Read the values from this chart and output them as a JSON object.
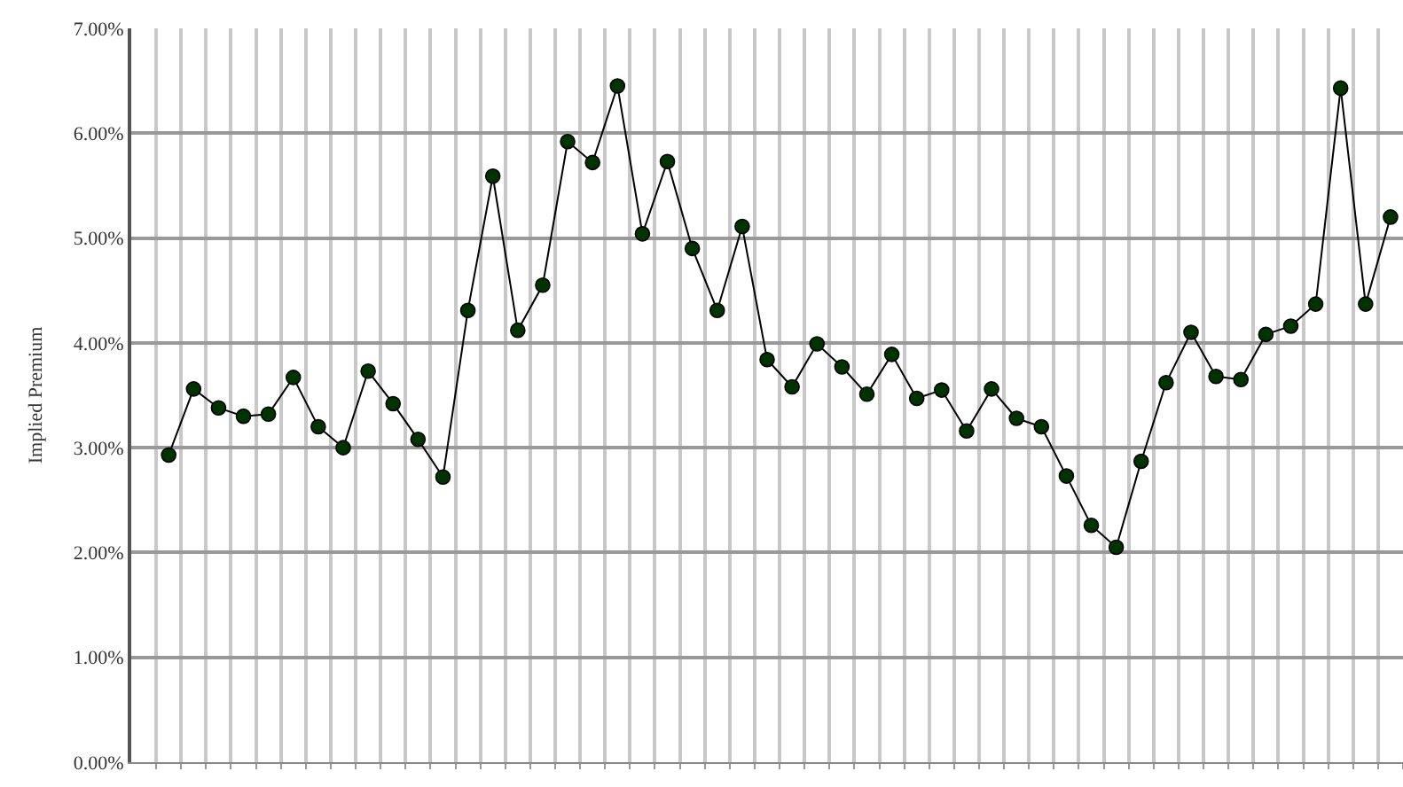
{
  "chart_data": {
    "type": "line",
    "ylabel": "Implied Premium",
    "categories": [
      null,
      null,
      null,
      null,
      null,
      null,
      null,
      null,
      null,
      null,
      null,
      null,
      null,
      null,
      null,
      null,
      null,
      null,
      null,
      null,
      null,
      null,
      null,
      null,
      null,
      null,
      null,
      null,
      null,
      null,
      null,
      null,
      null,
      null,
      null,
      null,
      null,
      null,
      null,
      null,
      null,
      null,
      null,
      null,
      null,
      null,
      null,
      null,
      null,
      null
    ],
    "series": [
      {
        "color": "#003300",
        "values": [
          2.93,
          3.56,
          3.38,
          3.3,
          3.32,
          3.67,
          3.2,
          3.0,
          3.73,
          3.42,
          3.08,
          2.72,
          4.31,
          5.59,
          4.12,
          4.55,
          5.92,
          5.72,
          6.45,
          5.04,
          5.73,
          4.9,
          4.31,
          5.11,
          3.84,
          3.58,
          3.99,
          3.77,
          3.51,
          3.89,
          3.47,
          3.55,
          3.16,
          3.56,
          3.28,
          3.2,
          2.73,
          2.26,
          2.05,
          2.87,
          3.62,
          4.1,
          3.68,
          3.65,
          4.08,
          4.16,
          4.37,
          6.43,
          4.37,
          5.2
        ]
      }
    ],
    "ylim": [
      0,
      7
    ],
    "yticks": [
      {
        "value": 0,
        "label": "0.00%"
      },
      {
        "value": 1,
        "label": "1.00%"
      },
      {
        "value": 2,
        "label": "2.00%"
      },
      {
        "value": 3,
        "label": "3.00%"
      },
      {
        "value": 4,
        "label": "4.00%"
      },
      {
        "value": 5,
        "label": "5.00%"
      },
      {
        "value": 6,
        "label": "6.00%"
      },
      {
        "value": 7,
        "label": "7.00%"
      }
    ],
    "grid": true,
    "marker": "circle",
    "line_style": "solid",
    "legend": false
  }
}
